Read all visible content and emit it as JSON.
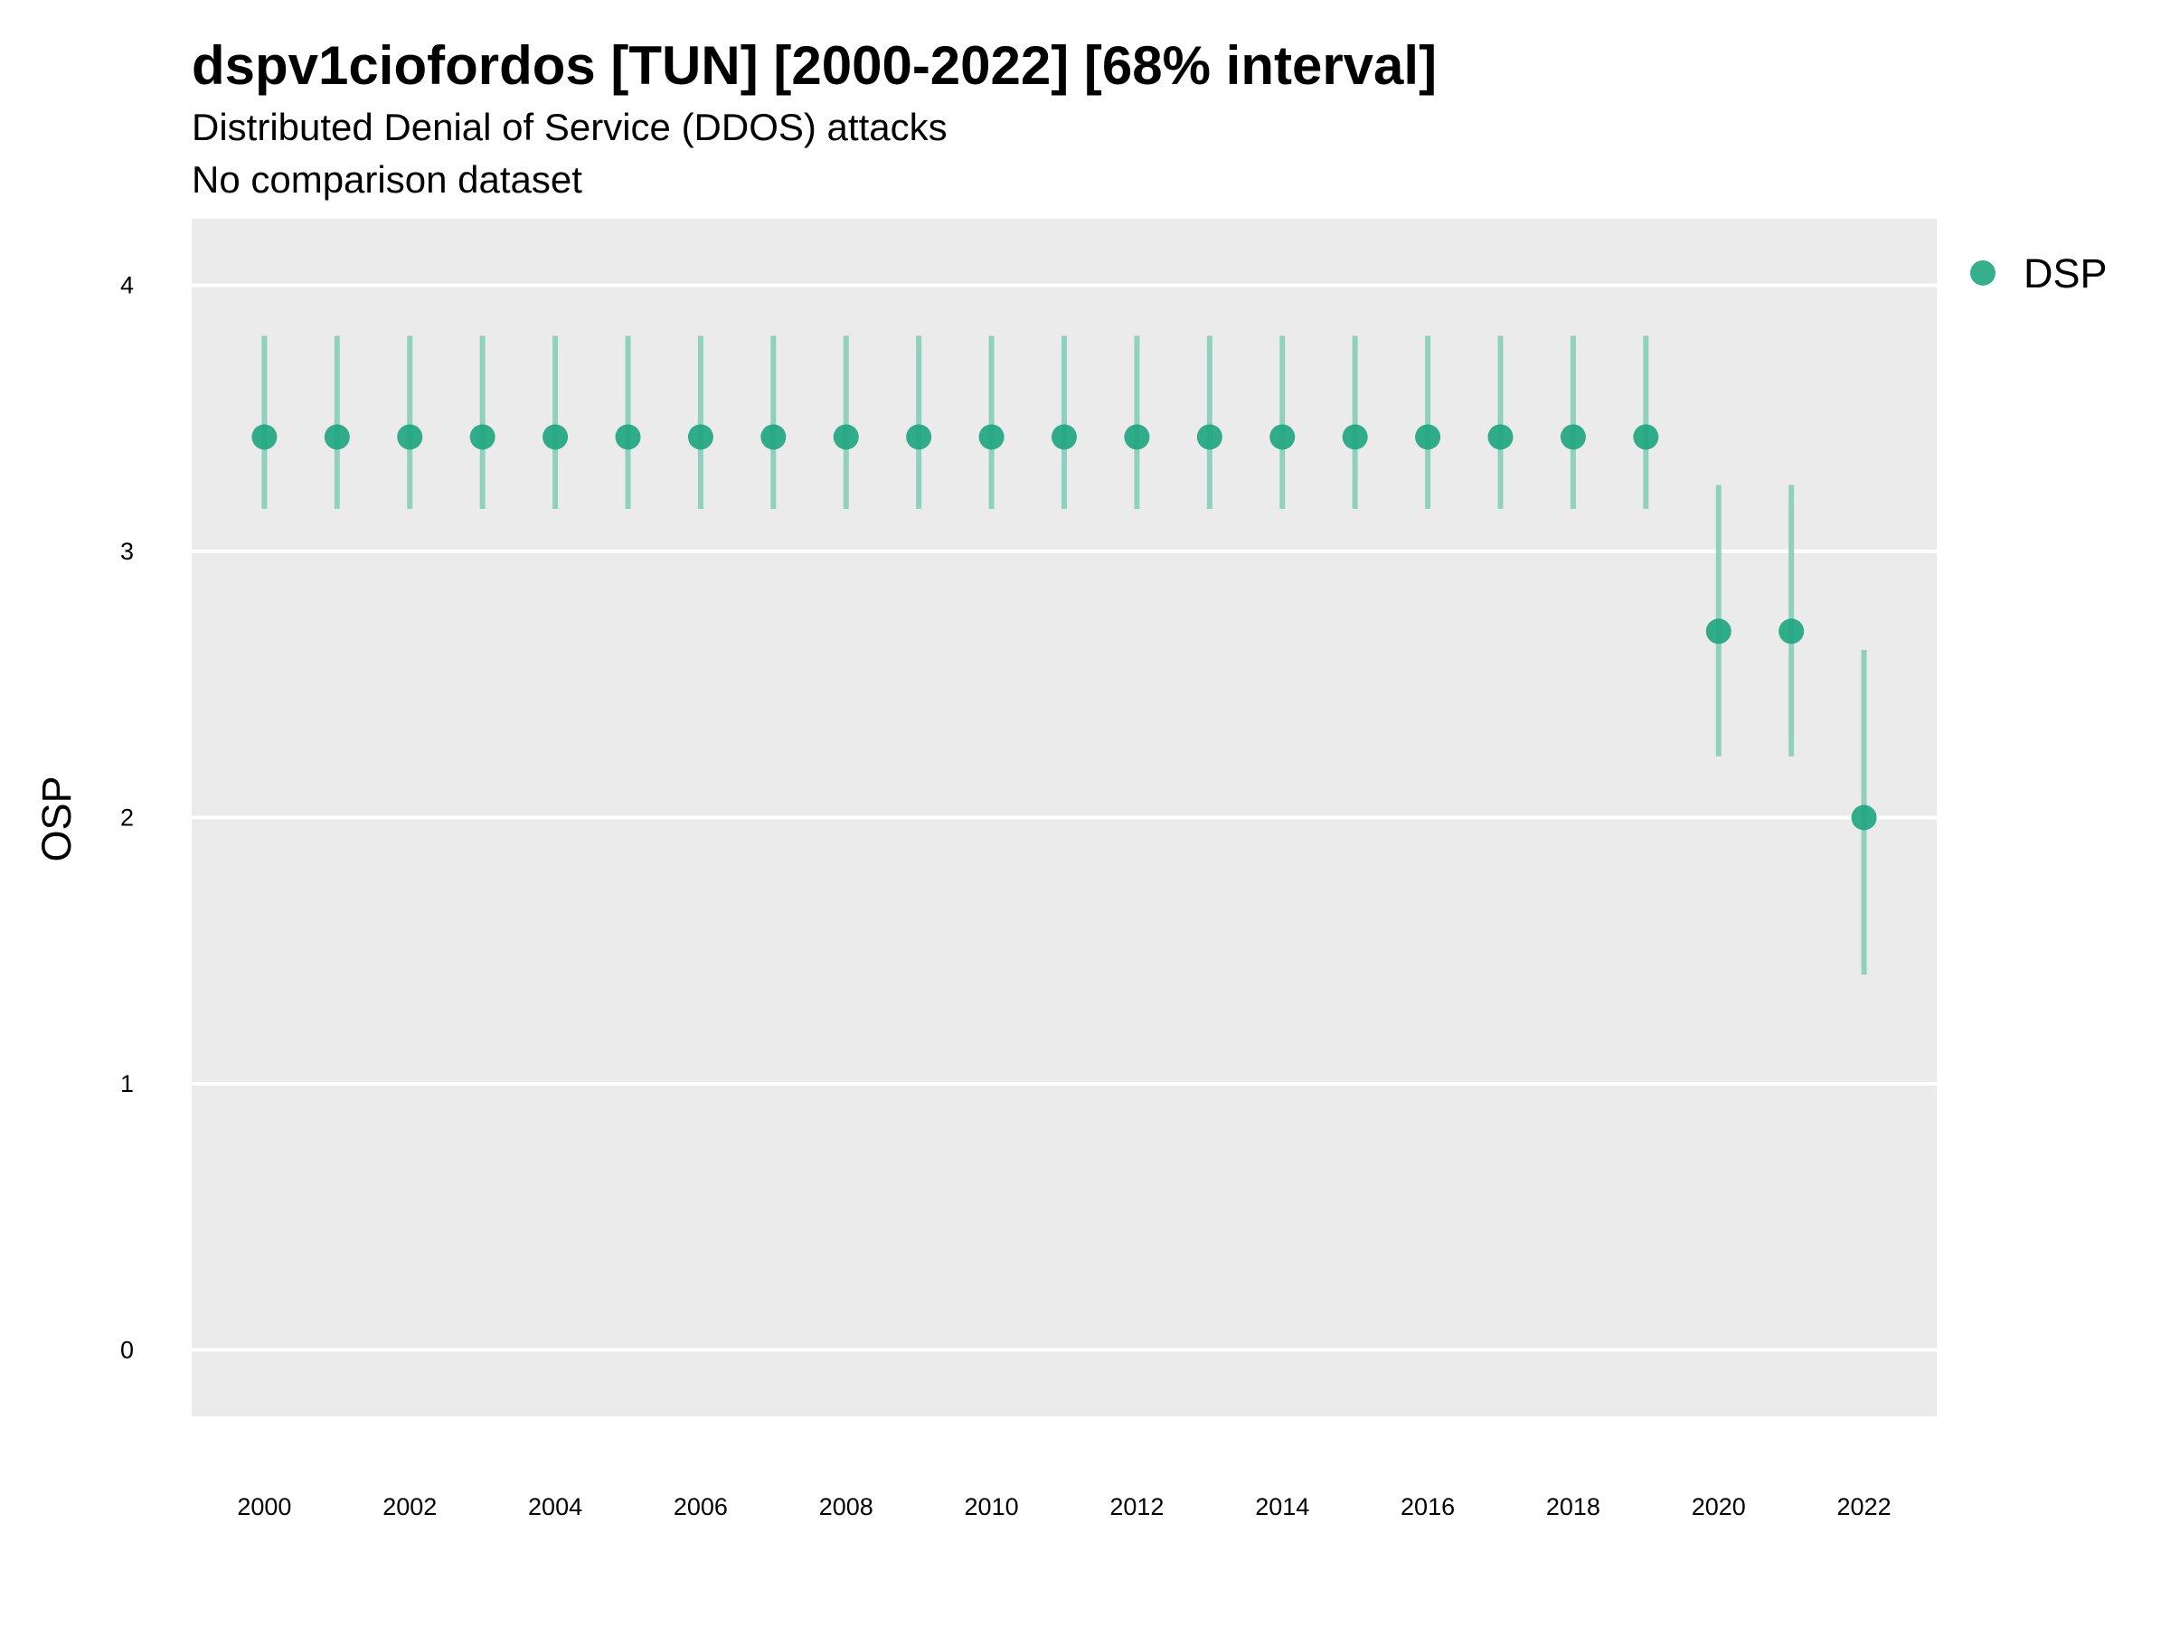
{
  "chart_data": {
    "type": "scatter",
    "title": "dspv1ciofordos [TUN] [2000-2022] [68% interval]",
    "subtitle": "Distributed Denial of Service (DDOS) attacks",
    "subtitle2": "No comparison dataset",
    "xlabel": "",
    "ylabel": "OSP",
    "xlim": [
      1999,
      2023
    ],
    "ylim": [
      -0.25,
      4.25
    ],
    "x_ticks": [
      "2000",
      "2002",
      "2004",
      "2006",
      "2008",
      "2010",
      "2012",
      "2014",
      "2016",
      "2018",
      "2020",
      "2022"
    ],
    "y_ticks": [
      "0",
      "1",
      "2",
      "3",
      "4"
    ],
    "grid": true,
    "legend": {
      "position": "right",
      "entries": [
        "DSP"
      ]
    },
    "colors": {
      "point": "#1fa67f",
      "interval": "#8fd1bc",
      "panel": "#ebebeb",
      "grid": "#ffffff"
    },
    "series": [
      {
        "name": "DSP",
        "x": [
          2000,
          2001,
          2002,
          2003,
          2004,
          2005,
          2006,
          2007,
          2008,
          2009,
          2010,
          2011,
          2012,
          2013,
          2014,
          2015,
          2016,
          2017,
          2018,
          2019,
          2020,
          2021,
          2022
        ],
        "y": [
          3.43,
          3.43,
          3.43,
          3.43,
          3.43,
          3.43,
          3.43,
          3.43,
          3.43,
          3.43,
          3.43,
          3.43,
          3.43,
          3.43,
          3.43,
          3.43,
          3.43,
          3.43,
          3.43,
          3.43,
          2.7,
          2.7,
          2.0
        ],
        "lower": [
          3.16,
          3.16,
          3.16,
          3.16,
          3.16,
          3.16,
          3.16,
          3.16,
          3.16,
          3.16,
          3.16,
          3.16,
          3.16,
          3.16,
          3.16,
          3.16,
          3.16,
          3.16,
          3.16,
          3.16,
          2.23,
          2.23,
          1.41
        ],
        "upper": [
          3.81,
          3.81,
          3.81,
          3.81,
          3.81,
          3.81,
          3.81,
          3.81,
          3.81,
          3.81,
          3.81,
          3.81,
          3.81,
          3.81,
          3.81,
          3.81,
          3.81,
          3.81,
          3.81,
          3.81,
          3.25,
          3.25,
          2.63
        ]
      }
    ]
  }
}
